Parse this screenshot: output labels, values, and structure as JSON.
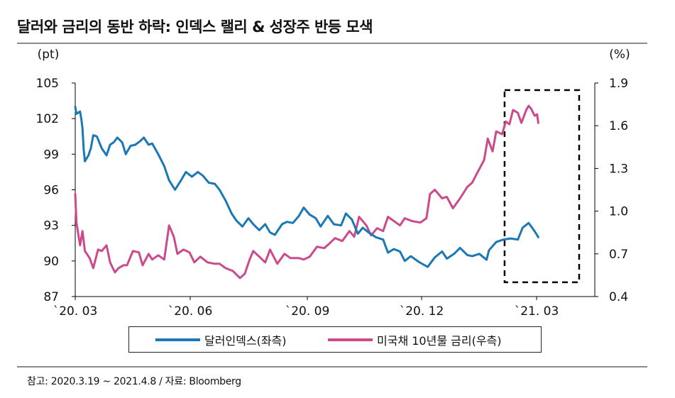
{
  "title": "달러와 금리의 동반 하락: 인덱스 랠리 & 성장주 반등 모색",
  "source": "참고: 2020.3.19 ~ 2021.4.8 / 자료: Bloomberg",
  "colors": {
    "dollar": "#1a78b4",
    "rate": "#cc4a8b",
    "axis": "#000000"
  },
  "chart_data": {
    "type": "line",
    "left_axis": {
      "unit": "(pt)",
      "ylim": [
        87,
        105
      ],
      "ticks": [
        "105",
        "102",
        "99",
        "96",
        "93",
        "90",
        "87"
      ]
    },
    "right_axis": {
      "unit": "(%)",
      "ylim": [
        0.4,
        1.9
      ],
      "ticks": [
        "1.9",
        "1.6",
        "1.3",
        "1.0",
        "0.7",
        "0.4"
      ]
    },
    "x_ticks": [
      "`20. 03",
      "`20. 06",
      "`20. 09",
      "`20. 12",
      "`21. 03"
    ],
    "x_range": [
      "2020-03-19",
      "2021-05-25"
    ],
    "highlight_box": {
      "from": "2021-03-11",
      "to": "2021-05-12",
      "style": "dashed",
      "range_pct": [
        0.5,
        1.85
      ]
    },
    "series": [
      {
        "name": "달러인덱스(좌측)",
        "axis": "left",
        "points": [
          [
            "2020-03-19",
            103.0
          ],
          [
            "2020-03-20",
            102.4
          ],
          [
            "2020-03-23",
            102.6
          ],
          [
            "2020-03-24",
            102.0
          ],
          [
            "2020-03-25",
            101.2
          ],
          [
            "2020-03-26",
            99.4
          ],
          [
            "2020-03-27",
            98.4
          ],
          [
            "2020-03-30",
            98.9
          ],
          [
            "2020-04-01",
            99.5
          ],
          [
            "2020-04-03",
            100.6
          ],
          [
            "2020-04-06",
            100.5
          ],
          [
            "2020-04-08",
            100.0
          ],
          [
            "2020-04-10",
            99.5
          ],
          [
            "2020-04-14",
            98.9
          ],
          [
            "2020-04-17",
            99.8
          ],
          [
            "2020-04-20",
            100.0
          ],
          [
            "2020-04-23",
            100.4
          ],
          [
            "2020-04-27",
            100.0
          ],
          [
            "2020-04-30",
            99.0
          ],
          [
            "2020-05-04",
            99.7
          ],
          [
            "2020-05-08",
            99.8
          ],
          [
            "2020-05-12",
            100.1
          ],
          [
            "2020-05-15",
            100.4
          ],
          [
            "2020-05-19",
            99.8
          ],
          [
            "2020-05-22",
            99.9
          ],
          [
            "2020-05-27",
            99.0
          ],
          [
            "2020-06-01",
            98.0
          ],
          [
            "2020-06-05",
            96.8
          ],
          [
            "2020-06-10",
            96.0
          ],
          [
            "2020-06-15",
            96.8
          ],
          [
            "2020-06-19",
            97.5
          ],
          [
            "2020-06-24",
            97.1
          ],
          [
            "2020-06-29",
            97.5
          ],
          [
            "2020-07-03",
            97.2
          ],
          [
            "2020-07-08",
            96.6
          ],
          [
            "2020-07-13",
            96.5
          ],
          [
            "2020-07-17",
            96.0
          ],
          [
            "2020-07-22",
            95.1
          ],
          [
            "2020-07-27",
            94.0
          ],
          [
            "2020-07-31",
            93.4
          ],
          [
            "2020-08-05",
            92.9
          ],
          [
            "2020-08-10",
            93.6
          ],
          [
            "2020-08-14",
            93.1
          ],
          [
            "2020-08-19",
            92.6
          ],
          [
            "2020-08-24",
            93.1
          ],
          [
            "2020-08-28",
            92.4
          ],
          [
            "2020-09-01",
            92.2
          ],
          [
            "2020-09-07",
            93.1
          ],
          [
            "2020-09-11",
            93.3
          ],
          [
            "2020-09-16",
            93.2
          ],
          [
            "2020-09-21",
            93.8
          ],
          [
            "2020-09-25",
            94.5
          ],
          [
            "2020-09-30",
            93.9
          ],
          [
            "2020-10-05",
            93.6
          ],
          [
            "2020-10-09",
            92.9
          ],
          [
            "2020-10-15",
            93.8
          ],
          [
            "2020-10-20",
            93.1
          ],
          [
            "2020-10-26",
            93.0
          ],
          [
            "2020-10-30",
            94.0
          ],
          [
            "2020-11-04",
            93.5
          ],
          [
            "2020-11-09",
            92.3
          ],
          [
            "2020-11-13",
            92.8
          ],
          [
            "2020-11-18",
            92.4
          ],
          [
            "2020-11-24",
            92.0
          ],
          [
            "2020-11-30",
            91.8
          ],
          [
            "2020-12-04",
            90.7
          ],
          [
            "2020-12-09",
            91.0
          ],
          [
            "2020-12-14",
            90.8
          ],
          [
            "2020-12-18",
            90.0
          ],
          [
            "2020-12-23",
            90.4
          ],
          [
            "2020-12-30",
            89.9
          ],
          [
            "2021-01-06",
            89.5
          ],
          [
            "2021-01-12",
            90.3
          ],
          [
            "2021-01-18",
            90.8
          ],
          [
            "2021-01-22",
            90.2
          ],
          [
            "2021-01-28",
            90.6
          ],
          [
            "2021-02-02",
            91.1
          ],
          [
            "2021-02-08",
            90.5
          ],
          [
            "2021-02-12",
            90.4
          ],
          [
            "2021-02-18",
            90.6
          ],
          [
            "2021-02-24",
            90.1
          ],
          [
            "2021-02-26",
            90.9
          ],
          [
            "2021-03-04",
            91.6
          ],
          [
            "2021-03-10",
            91.8
          ],
          [
            "2021-03-16",
            91.9
          ],
          [
            "2021-03-22",
            91.8
          ],
          [
            "2021-03-26",
            92.8
          ],
          [
            "2021-03-31",
            93.2
          ],
          [
            "2021-04-05",
            92.5
          ],
          [
            "2021-04-08",
            92.0
          ]
        ]
      },
      {
        "name": "미국채 10년물 금리(우측)",
        "axis": "right",
        "points": [
          [
            "2020-03-19",
            1.12
          ],
          [
            "2020-03-20",
            0.92
          ],
          [
            "2020-03-23",
            0.76
          ],
          [
            "2020-03-25",
            0.86
          ],
          [
            "2020-03-27",
            0.72
          ],
          [
            "2020-03-31",
            0.67
          ],
          [
            "2020-04-03",
            0.6
          ],
          [
            "2020-04-07",
            0.73
          ],
          [
            "2020-04-10",
            0.72
          ],
          [
            "2020-04-14",
            0.76
          ],
          [
            "2020-04-17",
            0.64
          ],
          [
            "2020-04-21",
            0.57
          ],
          [
            "2020-04-24",
            0.6
          ],
          [
            "2020-04-28",
            0.62
          ],
          [
            "2020-05-01",
            0.62
          ],
          [
            "2020-05-06",
            0.72
          ],
          [
            "2020-05-11",
            0.71
          ],
          [
            "2020-05-14",
            0.62
          ],
          [
            "2020-05-19",
            0.7
          ],
          [
            "2020-05-22",
            0.66
          ],
          [
            "2020-05-27",
            0.69
          ],
          [
            "2020-06-01",
            0.66
          ],
          [
            "2020-06-05",
            0.9
          ],
          [
            "2020-06-09",
            0.82
          ],
          [
            "2020-06-12",
            0.7
          ],
          [
            "2020-06-17",
            0.73
          ],
          [
            "2020-06-22",
            0.71
          ],
          [
            "2020-06-26",
            0.64
          ],
          [
            "2020-07-01",
            0.68
          ],
          [
            "2020-07-07",
            0.64
          ],
          [
            "2020-07-13",
            0.63
          ],
          [
            "2020-07-17",
            0.63
          ],
          [
            "2020-07-22",
            0.6
          ],
          [
            "2020-07-28",
            0.58
          ],
          [
            "2020-08-03",
            0.53
          ],
          [
            "2020-08-07",
            0.56
          ],
          [
            "2020-08-11",
            0.66
          ],
          [
            "2020-08-14",
            0.72
          ],
          [
            "2020-08-19",
            0.68
          ],
          [
            "2020-08-24",
            0.64
          ],
          [
            "2020-08-28",
            0.73
          ],
          [
            "2020-09-03",
            0.63
          ],
          [
            "2020-09-09",
            0.7
          ],
          [
            "2020-09-14",
            0.67
          ],
          [
            "2020-09-21",
            0.67
          ],
          [
            "2020-09-25",
            0.66
          ],
          [
            "2020-09-30",
            0.68
          ],
          [
            "2020-10-06",
            0.75
          ],
          [
            "2020-10-12",
            0.74
          ],
          [
            "2020-10-16",
            0.77
          ],
          [
            "2020-10-21",
            0.81
          ],
          [
            "2020-10-27",
            0.79
          ],
          [
            "2020-11-02",
            0.86
          ],
          [
            "2020-11-06",
            0.82
          ],
          [
            "2020-11-10",
            0.96
          ],
          [
            "2020-11-16",
            0.9
          ],
          [
            "2020-11-20",
            0.83
          ],
          [
            "2020-11-25",
            0.88
          ],
          [
            "2020-11-30",
            0.86
          ],
          [
            "2020-12-04",
            0.96
          ],
          [
            "2020-12-09",
            0.93
          ],
          [
            "2020-12-14",
            0.9
          ],
          [
            "2020-12-18",
            0.95
          ],
          [
            "2020-12-24",
            0.93
          ],
          [
            "2020-12-31",
            0.92
          ],
          [
            "2021-01-05",
            0.95
          ],
          [
            "2021-01-08",
            1.12
          ],
          [
            "2021-01-12",
            1.15
          ],
          [
            "2021-01-18",
            1.09
          ],
          [
            "2021-01-22",
            1.1
          ],
          [
            "2021-01-27",
            1.02
          ],
          [
            "2021-02-02",
            1.09
          ],
          [
            "2021-02-08",
            1.17
          ],
          [
            "2021-02-12",
            1.2
          ],
          [
            "2021-02-17",
            1.28
          ],
          [
            "2021-02-22",
            1.36
          ],
          [
            "2021-02-25",
            1.51
          ],
          [
            "2021-03-01",
            1.42
          ],
          [
            "2021-03-04",
            1.56
          ],
          [
            "2021-03-09",
            1.54
          ],
          [
            "2021-03-12",
            1.63
          ],
          [
            "2021-03-15",
            1.61
          ],
          [
            "2021-03-18",
            1.71
          ],
          [
            "2021-03-22",
            1.69
          ],
          [
            "2021-03-25",
            1.62
          ],
          [
            "2021-03-29",
            1.71
          ],
          [
            "2021-03-31",
            1.74
          ],
          [
            "2021-04-02",
            1.72
          ],
          [
            "2021-04-05",
            1.67
          ],
          [
            "2021-04-07",
            1.68
          ],
          [
            "2021-04-08",
            1.62
          ]
        ]
      }
    ]
  }
}
